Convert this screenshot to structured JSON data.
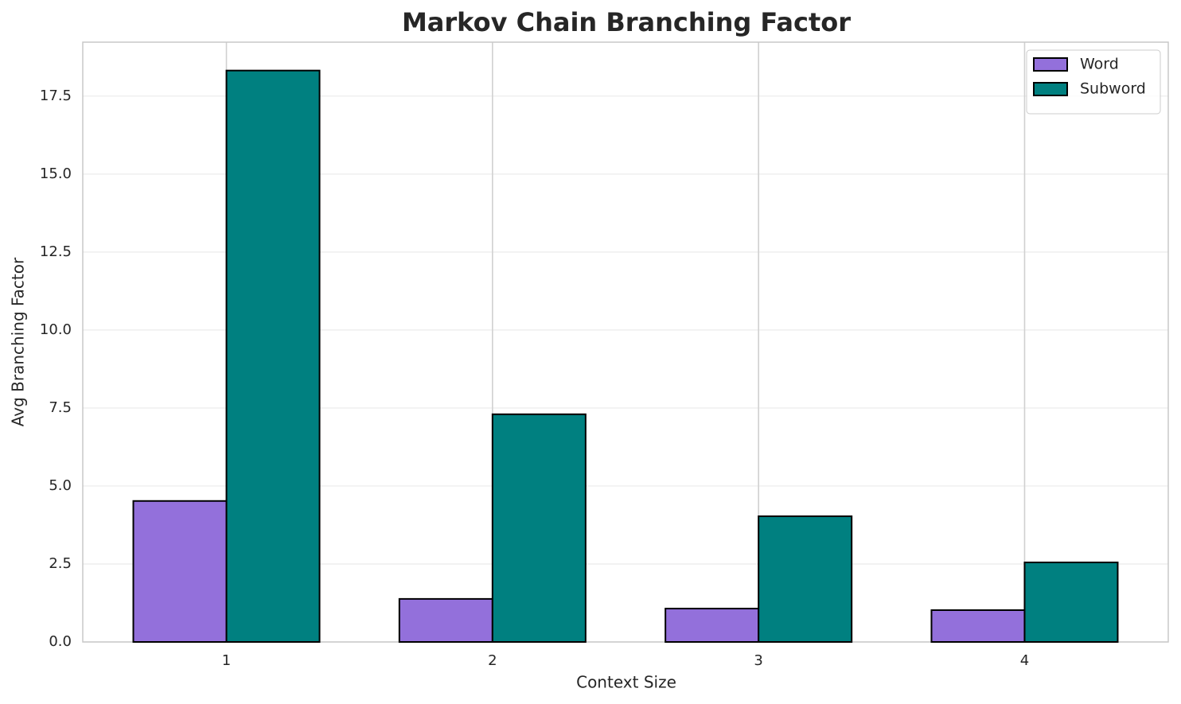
{
  "chart_data": {
    "type": "bar",
    "title": "Markov Chain Branching Factor",
    "x_label": "Context Size",
    "y_label": "Avg Branching Factor",
    "x": [
      1,
      2,
      3,
      4
    ],
    "series": [
      {
        "name": "Word",
        "color": "#9370db",
        "values": [
          4.52,
          1.38,
          1.07,
          1.02
        ]
      },
      {
        "name": "Subword",
        "color": "#008080",
        "values": [
          18.32,
          7.3,
          4.03,
          2.55
        ]
      }
    ],
    "xlim": [
      0.46,
      4.54
    ],
    "xticks": [
      1,
      2,
      3,
      4
    ],
    "ylim": [
      0,
      19.23
    ],
    "yticks": [
      {
        "value": 0,
        "label": "0.0"
      },
      2.5,
      {
        "value": 5,
        "label": "5.0"
      },
      7.5,
      {
        "value": 10,
        "label": "10.0"
      },
      12.5,
      {
        "value": 15,
        "label": "15.0"
      },
      17.5
    ],
    "grid": true,
    "legend": "upper-right"
  }
}
